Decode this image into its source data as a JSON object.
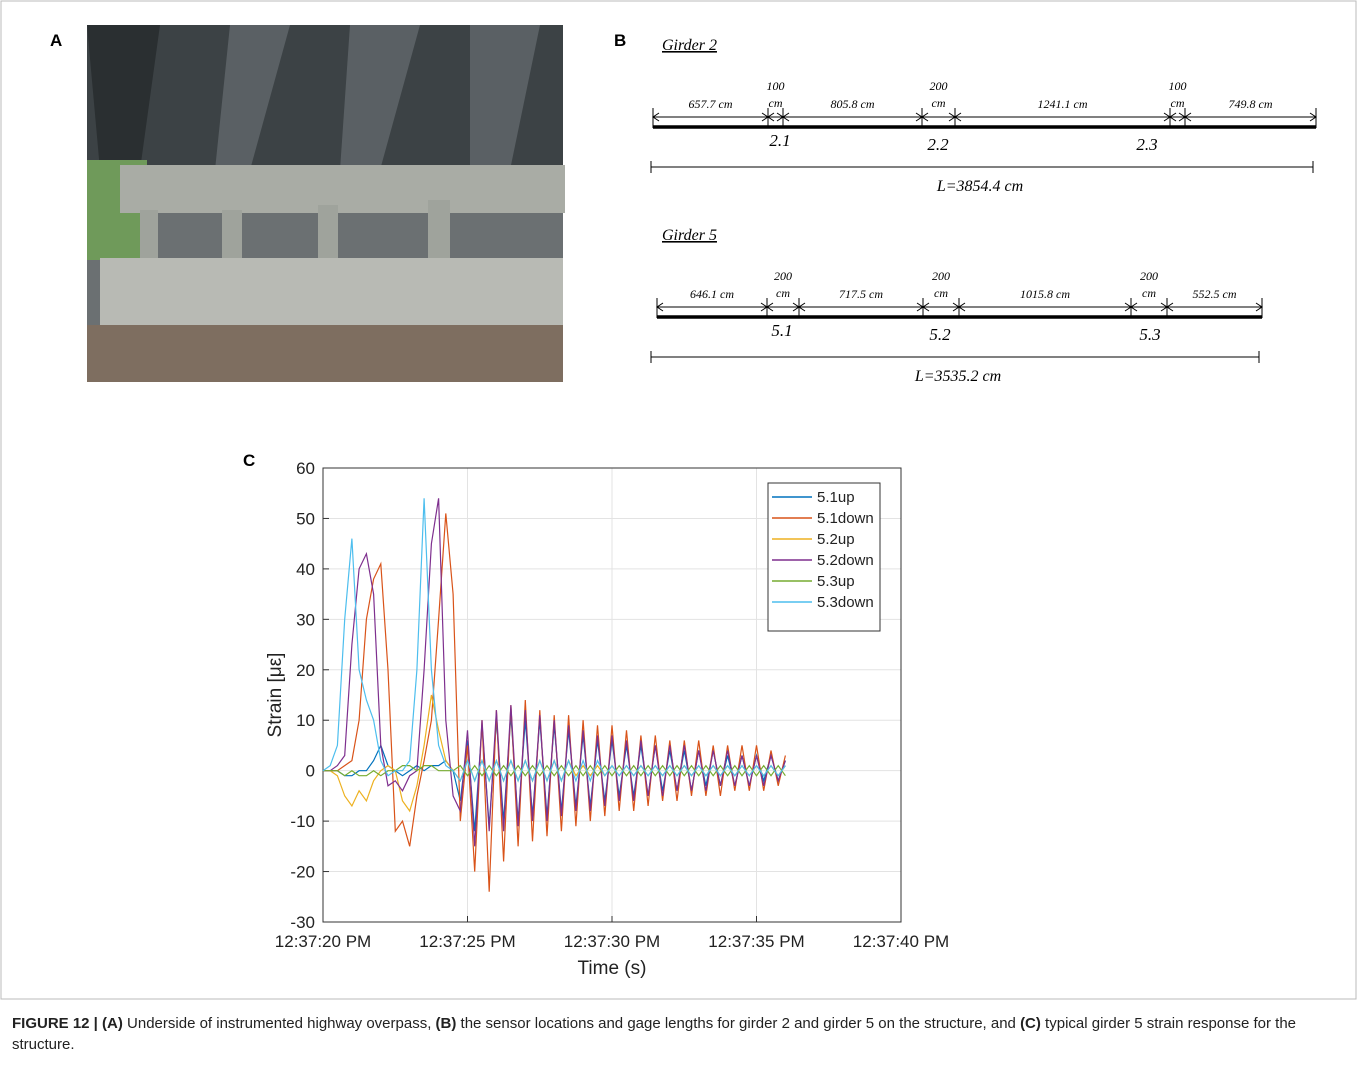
{
  "panel_a": {
    "label": "A"
  },
  "panel_b": {
    "label": "B",
    "girders": [
      {
        "title": "Girder 2",
        "segments": [
          "657.7 cm",
          "805.8 cm",
          "1241.1 cm",
          "749.8 cm"
        ],
        "gauges": [
          {
            "length": "100",
            "unit": "cm"
          },
          {
            "length": "200",
            "unit": "cm"
          },
          {
            "length": "100",
            "unit": "cm"
          }
        ],
        "sensors": [
          "2.1",
          "2.2",
          "2.3"
        ],
        "total": "L=3854.4 cm"
      },
      {
        "title": "Girder 5",
        "segments": [
          "646.1 cm",
          "717.5 cm",
          "1015.8 cm",
          "552.5 cm"
        ],
        "gauges": [
          {
            "length": "200",
            "unit": "cm"
          },
          {
            "length": "200",
            "unit": "cm"
          },
          {
            "length": "200",
            "unit": "cm"
          }
        ],
        "sensors": [
          "5.1",
          "5.2",
          "5.3"
        ],
        "total": "L=3535.2 cm"
      }
    ]
  },
  "panel_c": {
    "label": "C"
  },
  "chart_data": {
    "type": "line",
    "x_label": "Time (s)",
    "y_label": "Strain [με]",
    "xlim": [
      0,
      20
    ],
    "xticks": [
      {
        "value": 0,
        "label": "12:37:20 PM"
      },
      {
        "value": 5,
        "label": "12:37:25 PM"
      },
      {
        "value": 10,
        "label": "12:37:30 PM"
      },
      {
        "value": 15,
        "label": "12:37:35 PM"
      },
      {
        "value": 20,
        "label": "12:37:40 PM"
      }
    ],
    "ylim": [
      -30,
      60
    ],
    "yticks": [
      -30,
      -20,
      -10,
      0,
      10,
      20,
      30,
      40,
      50,
      60
    ],
    "grid": true,
    "legend": "upper-right",
    "x": [
      0,
      0.25,
      0.5,
      0.75,
      1,
      1.25,
      1.5,
      1.75,
      2,
      2.25,
      2.5,
      2.75,
      3,
      3.25,
      3.5,
      3.75,
      4,
      4.25,
      4.5,
      4.75,
      5,
      5.25,
      5.5,
      5.75,
      6,
      6.25,
      6.5,
      6.75,
      7,
      7.25,
      7.5,
      7.75,
      8,
      8.25,
      8.5,
      8.75,
      9,
      9.25,
      9.5,
      9.75,
      10,
      10.25,
      10.5,
      10.75,
      11,
      11.25,
      11.5,
      11.75,
      12,
      12.25,
      12.5,
      12.75,
      13,
      13.25,
      13.5,
      13.75,
      14,
      14.25,
      14.5,
      14.75,
      15,
      15.25,
      15.5,
      15.75,
      16
    ],
    "series": [
      {
        "name": "5.1up",
        "color": "#0072BD",
        "values": [
          0,
          0,
          0,
          -1,
          -1,
          0,
          0,
          2,
          5,
          1,
          0,
          -1,
          0,
          1,
          0,
          1,
          1,
          2,
          0,
          -6,
          6,
          -12,
          9,
          -11,
          10,
          -10,
          11,
          -10,
          10,
          -9,
          10,
          -9,
          9,
          -8,
          8,
          -7,
          7,
          -7,
          6,
          -6,
          6,
          -5,
          5,
          -5,
          5,
          -5,
          5,
          -4,
          4,
          -4,
          4,
          -4,
          4,
          -3,
          4,
          -3,
          3,
          -3,
          3,
          -3,
          3,
          -2,
          3,
          -2,
          2
        ]
      },
      {
        "name": "5.1down",
        "color": "#D95319",
        "values": [
          0,
          0,
          0,
          1,
          2,
          10,
          30,
          38,
          41,
          20,
          -12,
          -10,
          -15,
          -5,
          2,
          10,
          30,
          51,
          35,
          -10,
          5,
          -20,
          10,
          -24,
          12,
          -18,
          13,
          -15,
          14,
          -14,
          12,
          -13,
          11,
          -12,
          11,
          -11,
          10,
          -10,
          9,
          -9,
          9,
          -8,
          8,
          -8,
          7,
          -7,
          7,
          -6,
          6,
          -6,
          6,
          -5,
          6,
          -5,
          5,
          -5,
          5,
          -4,
          5,
          -4,
          5,
          -4,
          4,
          -3,
          3
        ]
      },
      {
        "name": "5.2up",
        "color": "#EDB120",
        "values": [
          0,
          0,
          -1,
          -5,
          -7,
          -4,
          -6,
          -2,
          0,
          1,
          0,
          -6,
          -8,
          -3,
          5,
          15,
          8,
          2,
          0,
          -2,
          2,
          -2,
          2,
          -2,
          2,
          -2,
          2,
          -2,
          2,
          -2,
          2,
          -2,
          2,
          -2,
          2,
          -1,
          1,
          -1,
          1,
          -1,
          1,
          -1,
          1,
          -1,
          1,
          -1,
          1,
          -1,
          1,
          -1,
          1,
          -1,
          1,
          -1,
          1,
          -1,
          1,
          -1,
          1,
          -1,
          1,
          -1,
          1,
          -1,
          1
        ]
      },
      {
        "name": "5.2down",
        "color": "#7E2F8E",
        "values": [
          0,
          0,
          1,
          3,
          25,
          40,
          43,
          35,
          5,
          -3,
          -2,
          -4,
          -1,
          0,
          20,
          45,
          54,
          10,
          -5,
          -8,
          8,
          -15,
          10,
          -12,
          12,
          -12,
          13,
          -11,
          12,
          -10,
          11,
          -10,
          10,
          -9,
          9,
          -8,
          8,
          -8,
          7,
          -7,
          7,
          -6,
          6,
          -6,
          6,
          -5,
          5,
          -5,
          5,
          -4,
          5,
          -4,
          4,
          -4,
          4,
          -3,
          4,
          -3,
          3,
          -3,
          3,
          -3,
          3,
          -2,
          2
        ]
      },
      {
        "name": "5.3up",
        "color": "#77AC30",
        "values": [
          0,
          0,
          0,
          -1,
          0,
          -1,
          -1,
          0,
          -1,
          0,
          0,
          1,
          1,
          0,
          1,
          1,
          0,
          0,
          0,
          1,
          -1,
          1,
          -1,
          1,
          -1,
          1,
          -1,
          1,
          -1,
          1,
          -1,
          1,
          -1,
          1,
          -1,
          1,
          -1,
          1,
          -1,
          1,
          -1,
          1,
          -1,
          1,
          -1,
          1,
          -1,
          1,
          -1,
          1,
          -1,
          1,
          -1,
          1,
          -1,
          1,
          -1,
          1,
          -1,
          1,
          -1,
          1,
          -1,
          1,
          -1
        ]
      },
      {
        "name": "5.3down",
        "color": "#4DBEEE",
        "values": [
          0,
          1,
          5,
          30,
          46,
          20,
          14,
          10,
          2,
          -1,
          0,
          0,
          2,
          20,
          54,
          20,
          5,
          1,
          0,
          -2,
          2,
          -2,
          2,
          -2,
          2,
          -2,
          2,
          -2,
          2,
          -2,
          2,
          -2,
          2,
          -2,
          2,
          -2,
          2,
          -2,
          2,
          -1,
          1,
          -1,
          1,
          -1,
          1,
          -1,
          1,
          -1,
          1,
          -1,
          1,
          -1,
          1,
          -1,
          1,
          -1,
          1,
          -1,
          1,
          -1,
          1,
          -1,
          1,
          -1,
          1
        ]
      }
    ]
  },
  "caption": {
    "runs": [
      {
        "text": "FIGURE 12 | (A)",
        "bold": true
      },
      {
        "text": " Underside of instrumented highway overpass, ",
        "bold": false
      },
      {
        "text": "(B)",
        "bold": true
      },
      {
        "text": " the sensor locations and gage lengths for girder 2 and girder 5 on the structure, and ",
        "bold": false
      },
      {
        "text": "(C)",
        "bold": true
      },
      {
        "text": " typical girder 5 strain response for the structure.",
        "bold": false
      }
    ]
  }
}
